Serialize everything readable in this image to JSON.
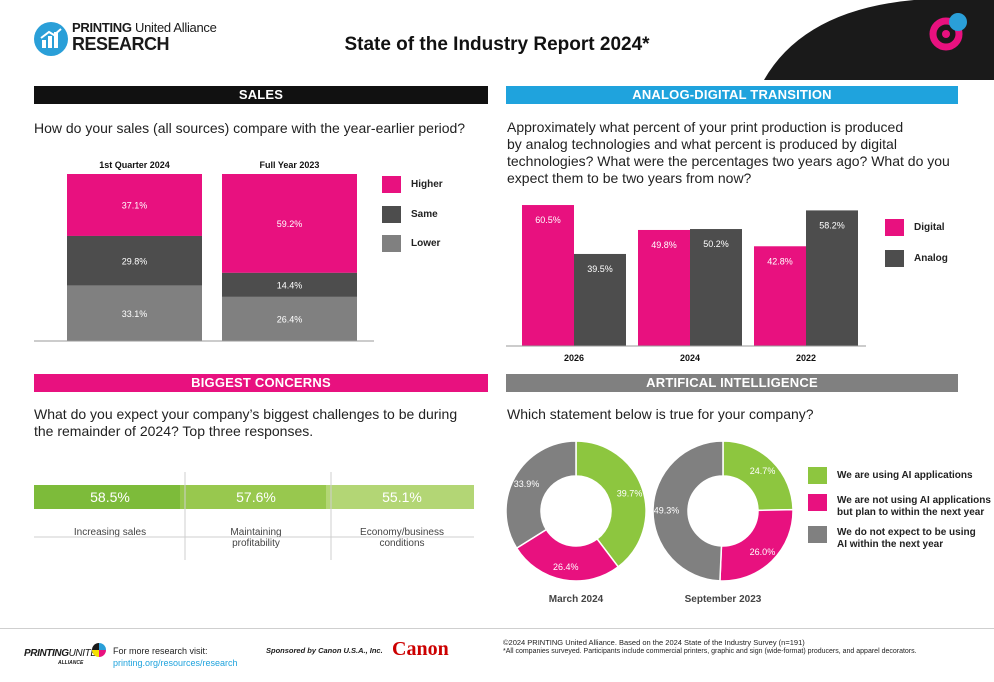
{
  "header": {
    "logo_line1_bold": "PRINTING",
    "logo_line1_rest": " United Alliance",
    "logo_line2": "RESEARCH",
    "title": "State of the Industry Report 2024*"
  },
  "sales": {
    "section_title": "SALES",
    "question": "How do your sales (all sources) compare with the year-earlier period?",
    "legend": [
      {
        "label": "Higher",
        "color": "#e8117f"
      },
      {
        "label": "Same",
        "color": "#4d4d4d"
      },
      {
        "label": "Lower",
        "color": "#808080"
      }
    ]
  },
  "transition": {
    "section_title": "ANALOG-DIGITAL TRANSITION",
    "question_lines": [
      "Approximately what percent of your print production is produced",
      "by analog technologies and what percent is produced by digital",
      "technologies? What were the percentages two years ago? What do you",
      "expect them to be two years from now?"
    ],
    "legend": [
      {
        "label": "Digital",
        "color": "#e8117f"
      },
      {
        "label": "Analog",
        "color": "#4d4d4d"
      }
    ]
  },
  "concerns": {
    "section_title": "BIGGEST CONCERNS",
    "question_lines": [
      "What do you expect your company’s biggest challenges to be during",
      "the remainder of 2024? Top three responses."
    ]
  },
  "ai": {
    "section_title": "ARTIFICAL INTELLIGENCE",
    "question": "Which statement below is true for your company?",
    "legend": [
      {
        "lines": [
          "We are using AI applications"
        ],
        "color": "#8dc63f"
      },
      {
        "lines": [
          "We are not using AI applications",
          "but plan to within the next year"
        ],
        "color": "#e8117f"
      },
      {
        "lines": [
          "We do not expect to be using",
          "AI within the next year"
        ],
        "color": "#808080"
      }
    ]
  },
  "chart_data": [
    {
      "type": "bar",
      "stacked": true,
      "categories": [
        "1st Quarter 2024",
        "Full Year 2023"
      ],
      "series": [
        {
          "name": "Higher",
          "values": [
            37.1,
            59.2
          ],
          "labels": [
            "37.1%",
            "59.2%"
          ],
          "color": "#e8117f"
        },
        {
          "name": "Same",
          "values": [
            29.8,
            14.4
          ],
          "labels": [
            "29.8%",
            "14.4%"
          ],
          "color": "#4d4d4d"
        },
        {
          "name": "Lower",
          "values": [
            33.1,
            26.4
          ],
          "labels": [
            "33.1%",
            "26.4%"
          ],
          "color": "#808080"
        }
      ],
      "ylim": [
        0,
        100
      ]
    },
    {
      "type": "bar",
      "categories": [
        "2026",
        "2024",
        "2022"
      ],
      "series": [
        {
          "name": "Digital",
          "values": [
            60.5,
            49.8,
            42.8
          ],
          "labels": [
            "60.5%",
            "49.8%",
            "42.8%"
          ],
          "color": "#e8117f"
        },
        {
          "name": "Analog",
          "values": [
            39.5,
            50.2,
            58.2
          ],
          "labels": [
            "39.5%",
            "50.2%",
            "58.2%"
          ],
          "color": "#4d4d4d"
        }
      ],
      "ylim": [
        0,
        65
      ]
    },
    {
      "type": "bar",
      "orientation": "horizontal",
      "categories": [
        [
          "Increasing sales"
        ],
        [
          "Maintaining",
          "profitability"
        ],
        [
          "Economy/business",
          "conditions"
        ]
      ],
      "values": [
        58.5,
        57.6,
        55.1
      ],
      "labels": [
        "58.5%",
        "57.6%",
        "55.1%"
      ],
      "colors": [
        "#7dbb3a",
        "#98c84e",
        "#b3d675"
      ]
    },
    {
      "type": "pie",
      "donut": true,
      "charts": [
        {
          "name": "March 2024",
          "values": [
            39.7,
            26.4,
            33.9
          ],
          "labels": [
            "39.7%",
            "26.4%",
            "33.9%"
          ]
        },
        {
          "name": "September 2023",
          "values": [
            24.7,
            26.0,
            49.3
          ],
          "labels": [
            "24.7%",
            "26.0%",
            "49.3%"
          ]
        }
      ],
      "slice_names": [
        "We are using AI applications",
        "We are not using AI applications but plan to within the next year",
        "We do not expect to be using AI within the next year"
      ],
      "colors": [
        "#8dc63f",
        "#e8117f",
        "#808080"
      ]
    }
  ],
  "footer": {
    "logo_bold": "PRINTING",
    "logo_rest": "UNITED",
    "logo_sub": "ALLIANCE",
    "visit_label": "For more research visit:",
    "visit_link": "printing.org/resources/research",
    "sponsor": "Sponsored by Canon U.S.A., Inc.",
    "canon": "Canon",
    "copyright": "©2024 PRINTING United Alliance. Based on the 2024 State of the Industry Survey (n=191)",
    "note": "*All companies surveyed. Participants include commercial printers, graphic and sign (wide-format) producers, and apparel decorators."
  }
}
